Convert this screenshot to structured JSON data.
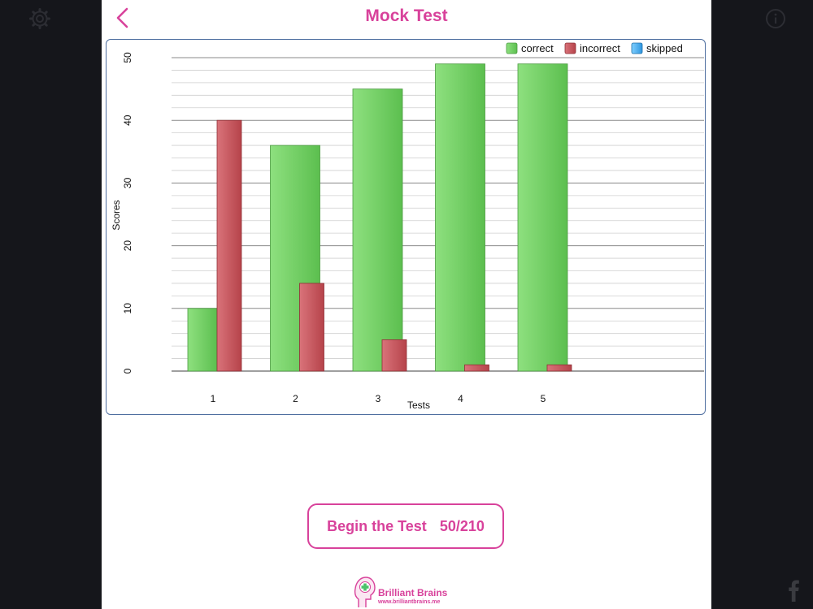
{
  "header": {
    "title": "Mock Test"
  },
  "actions": {
    "begin_label": "Begin the Test",
    "progress": "50/210"
  },
  "brand": {
    "name": "Brilliant Brains",
    "url": "www.brilliantbrains.me"
  },
  "icons": {
    "left_top": "gear-icon",
    "right_top": "info-icon",
    "bottom_right": "facebook-icon",
    "back": "chevron-left-icon"
  },
  "colors": {
    "accent": "#d8429b",
    "correct": "#74d46a",
    "incorrect": "#c95259",
    "skipped": "#3fa8ea"
  },
  "chart_data": {
    "type": "bar",
    "xlabel": "Tests",
    "ylabel": "Scores",
    "ylim": [
      0,
      50
    ],
    "y_ticks": [
      0,
      10,
      20,
      30,
      40,
      50
    ],
    "legend_position": "top-right",
    "grid": true,
    "categories": [
      "1",
      "2",
      "3",
      "4",
      "5"
    ],
    "series": [
      {
        "name": "correct",
        "values": [
          10,
          36,
          45,
          49,
          49
        ]
      },
      {
        "name": "incorrect",
        "values": [
          40,
          14,
          5,
          1,
          1
        ]
      },
      {
        "name": "skipped",
        "values": [
          0,
          0,
          0,
          0,
          0
        ]
      }
    ]
  }
}
